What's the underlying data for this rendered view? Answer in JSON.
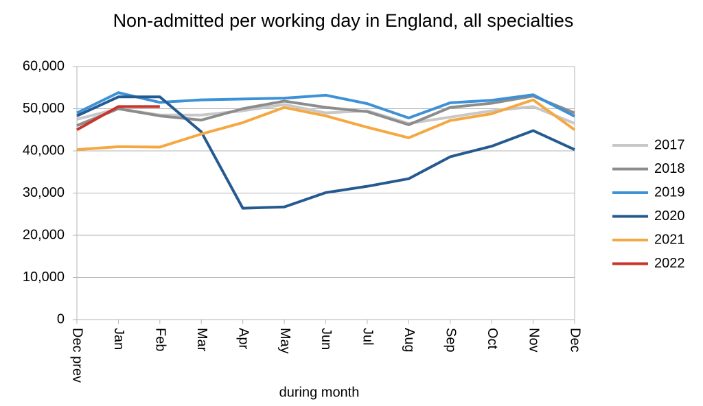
{
  "chart_data": {
    "type": "line",
    "title": "Non-admitted per working day in England, all specialties",
    "x_label": "during  month",
    "categories": [
      "Dec prev",
      "Jan",
      "Feb",
      "Mar",
      "Apr",
      "May",
      "Jun",
      "Jul",
      "Aug",
      "Sep",
      "Oct",
      "Nov",
      "Dec"
    ],
    "series": [
      {
        "name": "2017",
        "color": "#c8c8c8",
        "values": [
          47500,
          50000,
          48500,
          48500,
          49500,
          51000,
          49000,
          49500,
          46500,
          48000,
          49500,
          50500,
          46500
        ]
      },
      {
        "name": "2018",
        "color": "#8c8c8c",
        "values": [
          46000,
          50000,
          48300,
          47300,
          50000,
          51800,
          50300,
          49300,
          46200,
          50300,
          51300,
          53000,
          49000
        ]
      },
      {
        "name": "2019",
        "color": "#3d91d6",
        "values": [
          49000,
          53800,
          51500,
          52100,
          52300,
          52500,
          53200,
          51200,
          47800,
          51400,
          52000,
          53300,
          48200
        ]
      },
      {
        "name": "2020",
        "color": "#255a91",
        "values": [
          48300,
          52800,
          52800,
          44500,
          26400,
          26700,
          30100,
          31600,
          33400,
          38600,
          41100,
          44800,
          40300
        ]
      },
      {
        "name": "2021",
        "color": "#f5a841",
        "values": [
          40300,
          41000,
          40900,
          44000,
          46700,
          50300,
          48300,
          45600,
          43100,
          47200,
          48800,
          52100,
          45000
        ]
      },
      {
        "name": "2022",
        "color": "#c8352a",
        "values": [
          45000,
          50500,
          50500,
          null,
          null,
          null,
          null,
          null,
          null,
          null,
          null,
          null,
          null
        ]
      }
    ],
    "ylim": [
      0,
      60000
    ],
    "yticks": [
      {
        "value": 0,
        "label": "0"
      },
      {
        "value": 10000,
        "label": "10,000"
      },
      {
        "value": 20000,
        "label": "20,000"
      },
      {
        "value": 30000,
        "label": "30,000"
      },
      {
        "value": 40000,
        "label": "40,000"
      },
      {
        "value": 50000,
        "label": "50,000"
      },
      {
        "value": 60000,
        "label": "60,000"
      }
    ],
    "grid": true,
    "legend": "right"
  }
}
